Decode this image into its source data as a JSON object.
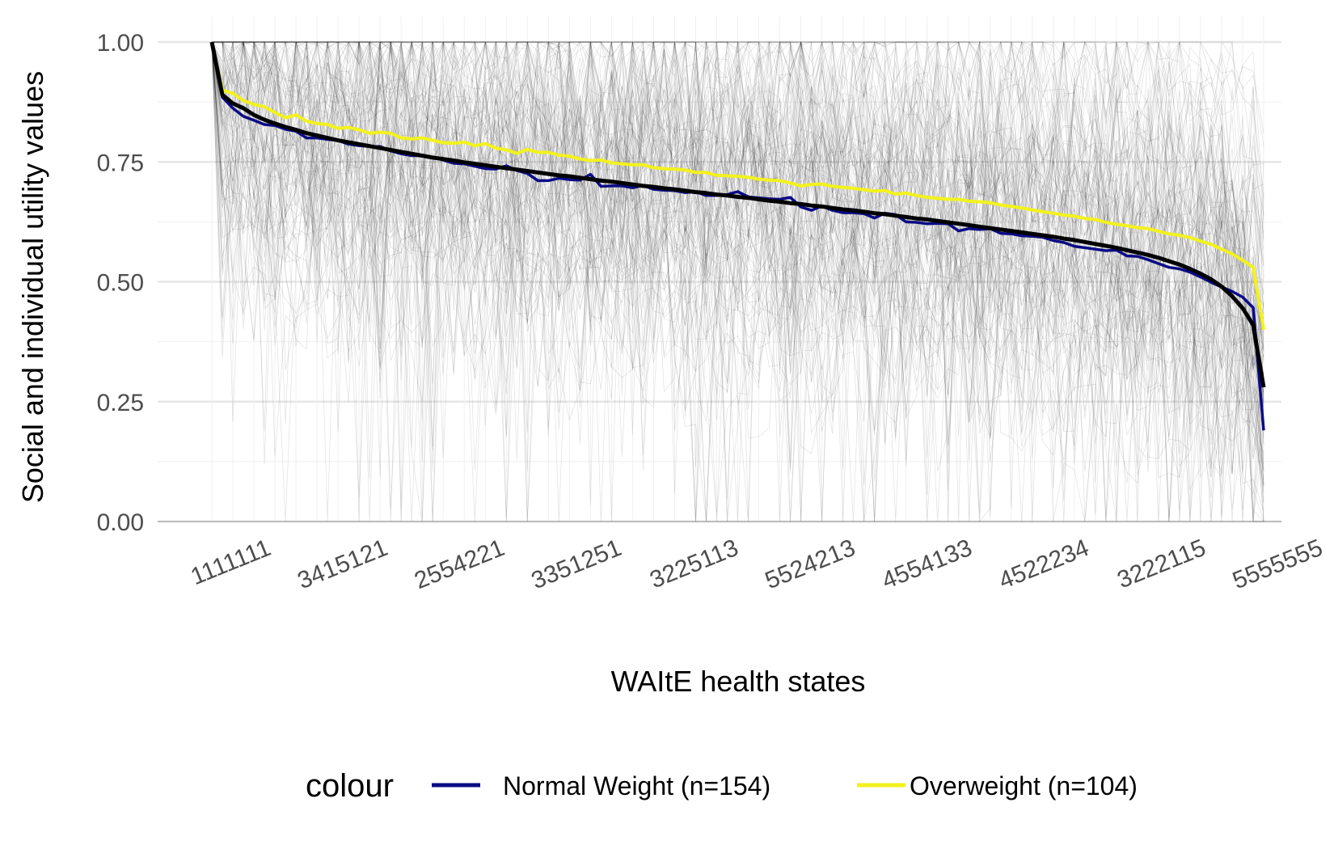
{
  "chart_data": {
    "type": "line",
    "title": "",
    "xlabel": "WAItE health states",
    "ylabel": "Social and individual utility values",
    "x_tick_labels": [
      "1111111",
      "3415121",
      "2554221",
      "3351251",
      "3225113",
      "5524213",
      "4554133",
      "4522234",
      "3222115",
      "5555555"
    ],
    "y_tick_labels": [
      "0.00",
      "0.25",
      "0.50",
      "0.75",
      "1.00"
    ],
    "ylim": [
      0,
      1
    ],
    "x_count": 101,
    "grid": true,
    "legend": {
      "position": "bottom",
      "title": "colour",
      "entries": [
        {
          "label": "Normal Weight (n=154)",
          "color": "#0b0b86"
        },
        {
          "label": "Overweight (n=104)",
          "color": "#f2f21e"
        }
      ]
    },
    "series": [
      {
        "name": "Normal Weight (n=154)",
        "color": "#0b0b86",
        "values": [
          1.0,
          0.885,
          0.862,
          0.845,
          0.837,
          0.828,
          0.826,
          0.818,
          0.814,
          0.8,
          0.8,
          0.797,
          0.795,
          0.787,
          0.784,
          0.782,
          0.782,
          0.773,
          0.767,
          0.763,
          0.763,
          0.76,
          0.754,
          0.747,
          0.746,
          0.741,
          0.736,
          0.735,
          0.742,
          0.732,
          0.726,
          0.711,
          0.711,
          0.716,
          0.713,
          0.712,
          0.724,
          0.699,
          0.7,
          0.7,
          0.696,
          0.701,
          0.693,
          0.691,
          0.69,
          0.686,
          0.688,
          0.68,
          0.68,
          0.682,
          0.688,
          0.677,
          0.675,
          0.673,
          0.672,
          0.676,
          0.656,
          0.649,
          0.658,
          0.649,
          0.644,
          0.644,
          0.642,
          0.633,
          0.643,
          0.64,
          0.625,
          0.624,
          0.621,
          0.622,
          0.621,
          0.606,
          0.611,
          0.609,
          0.611,
          0.601,
          0.6,
          0.596,
          0.595,
          0.593,
          0.586,
          0.582,
          0.574,
          0.571,
          0.568,
          0.565,
          0.566,
          0.554,
          0.553,
          0.546,
          0.538,
          0.53,
          0.527,
          0.52,
          0.51,
          0.499,
          0.489,
          0.48,
          0.468,
          0.446,
          0.19
        ]
      },
      {
        "name": "Overweight (n=104)",
        "color": "#f2f21e",
        "values": [
          1.0,
          0.9,
          0.893,
          0.878,
          0.87,
          0.865,
          0.853,
          0.842,
          0.848,
          0.835,
          0.83,
          0.828,
          0.82,
          0.822,
          0.817,
          0.81,
          0.812,
          0.81,
          0.8,
          0.798,
          0.8,
          0.795,
          0.79,
          0.789,
          0.791,
          0.784,
          0.788,
          0.779,
          0.775,
          0.768,
          0.776,
          0.77,
          0.77,
          0.764,
          0.762,
          0.756,
          0.753,
          0.754,
          0.748,
          0.746,
          0.744,
          0.744,
          0.738,
          0.736,
          0.735,
          0.733,
          0.728,
          0.728,
          0.722,
          0.721,
          0.72,
          0.718,
          0.714,
          0.712,
          0.711,
          0.706,
          0.7,
          0.703,
          0.704,
          0.699,
          0.697,
          0.695,
          0.692,
          0.689,
          0.69,
          0.683,
          0.685,
          0.68,
          0.676,
          0.674,
          0.672,
          0.672,
          0.668,
          0.667,
          0.665,
          0.66,
          0.657,
          0.654,
          0.65,
          0.646,
          0.643,
          0.639,
          0.637,
          0.632,
          0.63,
          0.624,
          0.62,
          0.617,
          0.613,
          0.611,
          0.605,
          0.6,
          0.597,
          0.592,
          0.585,
          0.578,
          0.568,
          0.558,
          0.545,
          0.53,
          0.4
        ]
      },
      {
        "name": "",
        "color": "#000000",
        "values": [
          1.0,
          0.89,
          0.872,
          0.862,
          0.848,
          0.838,
          0.83,
          0.823,
          0.817,
          0.81,
          0.805,
          0.8,
          0.795,
          0.791,
          0.787,
          0.783,
          0.779,
          0.775,
          0.771,
          0.767,
          0.763,
          0.759,
          0.756,
          0.753,
          0.749,
          0.746,
          0.743,
          0.74,
          0.737,
          0.734,
          0.731,
          0.728,
          0.725,
          0.722,
          0.72,
          0.717,
          0.714,
          0.711,
          0.709,
          0.706,
          0.703,
          0.7,
          0.698,
          0.695,
          0.693,
          0.69,
          0.687,
          0.685,
          0.682,
          0.68,
          0.677,
          0.675,
          0.672,
          0.669,
          0.667,
          0.664,
          0.662,
          0.659,
          0.657,
          0.654,
          0.651,
          0.649,
          0.646,
          0.643,
          0.641,
          0.638,
          0.635,
          0.632,
          0.63,
          0.627,
          0.624,
          0.621,
          0.618,
          0.615,
          0.612,
          0.609,
          0.606,
          0.603,
          0.6,
          0.597,
          0.594,
          0.59,
          0.587,
          0.583,
          0.579,
          0.575,
          0.571,
          0.566,
          0.561,
          0.556,
          0.55,
          0.543,
          0.536,
          0.527,
          0.517,
          0.505,
          0.49,
          0.47,
          0.445,
          0.41,
          0.28
        ]
      }
    ],
    "background_lines": {
      "count": 120,
      "color": "#000000",
      "opacity": 0.12
    }
  }
}
